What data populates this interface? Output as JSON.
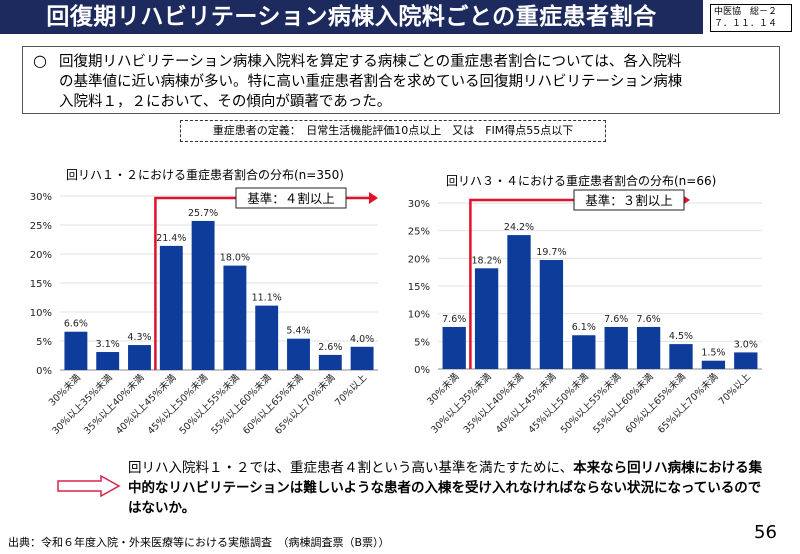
{
  "title": "回復期リハビリテーション病棟入院料ごとの重症患者割合",
  "badge": {
    "line1": "中医協　総－２",
    "line2": "７．１１．１４"
  },
  "summary": {
    "bullet": "○",
    "lines": [
      "回復期リハビリテーション病棟入院料を算定する病棟ごとの重症患者割合については、各入院料",
      "の基準値に近い病棟が多い。特に高い重症患者割合を求めている回復期リハビリテーション病棟",
      "入院料１，２において、その傾向が顕著であった。"
    ]
  },
  "definition": "重症患者の定義：　日常生活機能評価10点以上　又は　FIM得点55点以下",
  "chart_data": [
    {
      "type": "bar",
      "title": "回リハ１・２における重症患者割合の分布(n=350)",
      "categories": [
        "30%未満",
        "30%以上35%未満",
        "35%以上40%未満",
        "40%以上45%未満",
        "45%以上50%未満",
        "50%以上55%未満",
        "55%以上60%未満",
        "60%以上65%未満",
        "65%以上70%未満",
        "70%以上"
      ],
      "values": [
        6.6,
        3.1,
        4.3,
        21.4,
        25.7,
        18.0,
        11.1,
        5.4,
        2.6,
        4.0
      ],
      "value_labels": [
        "6.6%",
        "3.1%",
        "4.3%",
        "21.4%",
        "25.7%",
        "18.0%",
        "11.1%",
        "5.4%",
        "2.6%",
        "4.0%"
      ],
      "yticks": [
        "0%",
        "5%",
        "10%",
        "15%",
        "20%",
        "25%",
        "30%"
      ],
      "ylim": [
        0,
        30
      ],
      "threshold_label": "基準：４割以上",
      "threshold_category_index": 3,
      "color": "#0d3c9b"
    },
    {
      "type": "bar",
      "title": "回リハ３・４における重症患者割合の分布(n=66)",
      "categories": [
        "30%未満",
        "30%以上35%未満",
        "35%以上40%未満",
        "40%以上45%未満",
        "45%以上50%未満",
        "50%以上55%未満",
        "55%以上60%未満",
        "60%以上65%未満",
        "65%以上70%未満",
        "70%以上"
      ],
      "values": [
        7.6,
        18.2,
        24.2,
        19.7,
        6.1,
        7.6,
        7.6,
        4.5,
        1.5,
        3.0
      ],
      "value_labels": [
        "7.6%",
        "18.2%",
        "24.2%",
        "19.7%",
        "6.1%",
        "7.6%",
        "7.6%",
        "4.5%",
        "1.5%",
        "3.0%"
      ],
      "yticks": [
        "0%",
        "5%",
        "10%",
        "15%",
        "20%",
        "25%",
        "30%"
      ],
      "ylim": [
        0,
        30
      ],
      "threshold_label": "基準：３割以上",
      "threshold_category_index": 1,
      "color": "#0d3c9b"
    }
  ],
  "conclusion": {
    "normal": "回リハ入院料１・２では、重症患者４割という高い基準を満たすために、",
    "bold": "本来なら回リハ病棟における集中的なリハビリテーションは難しいような患者の入棟を受け入れなければならない状況になっているのではないか。"
  },
  "source": "出典：令和６年度入院・外来医療等における実態調査　（病棟調査票（B票））",
  "page_number": "56"
}
